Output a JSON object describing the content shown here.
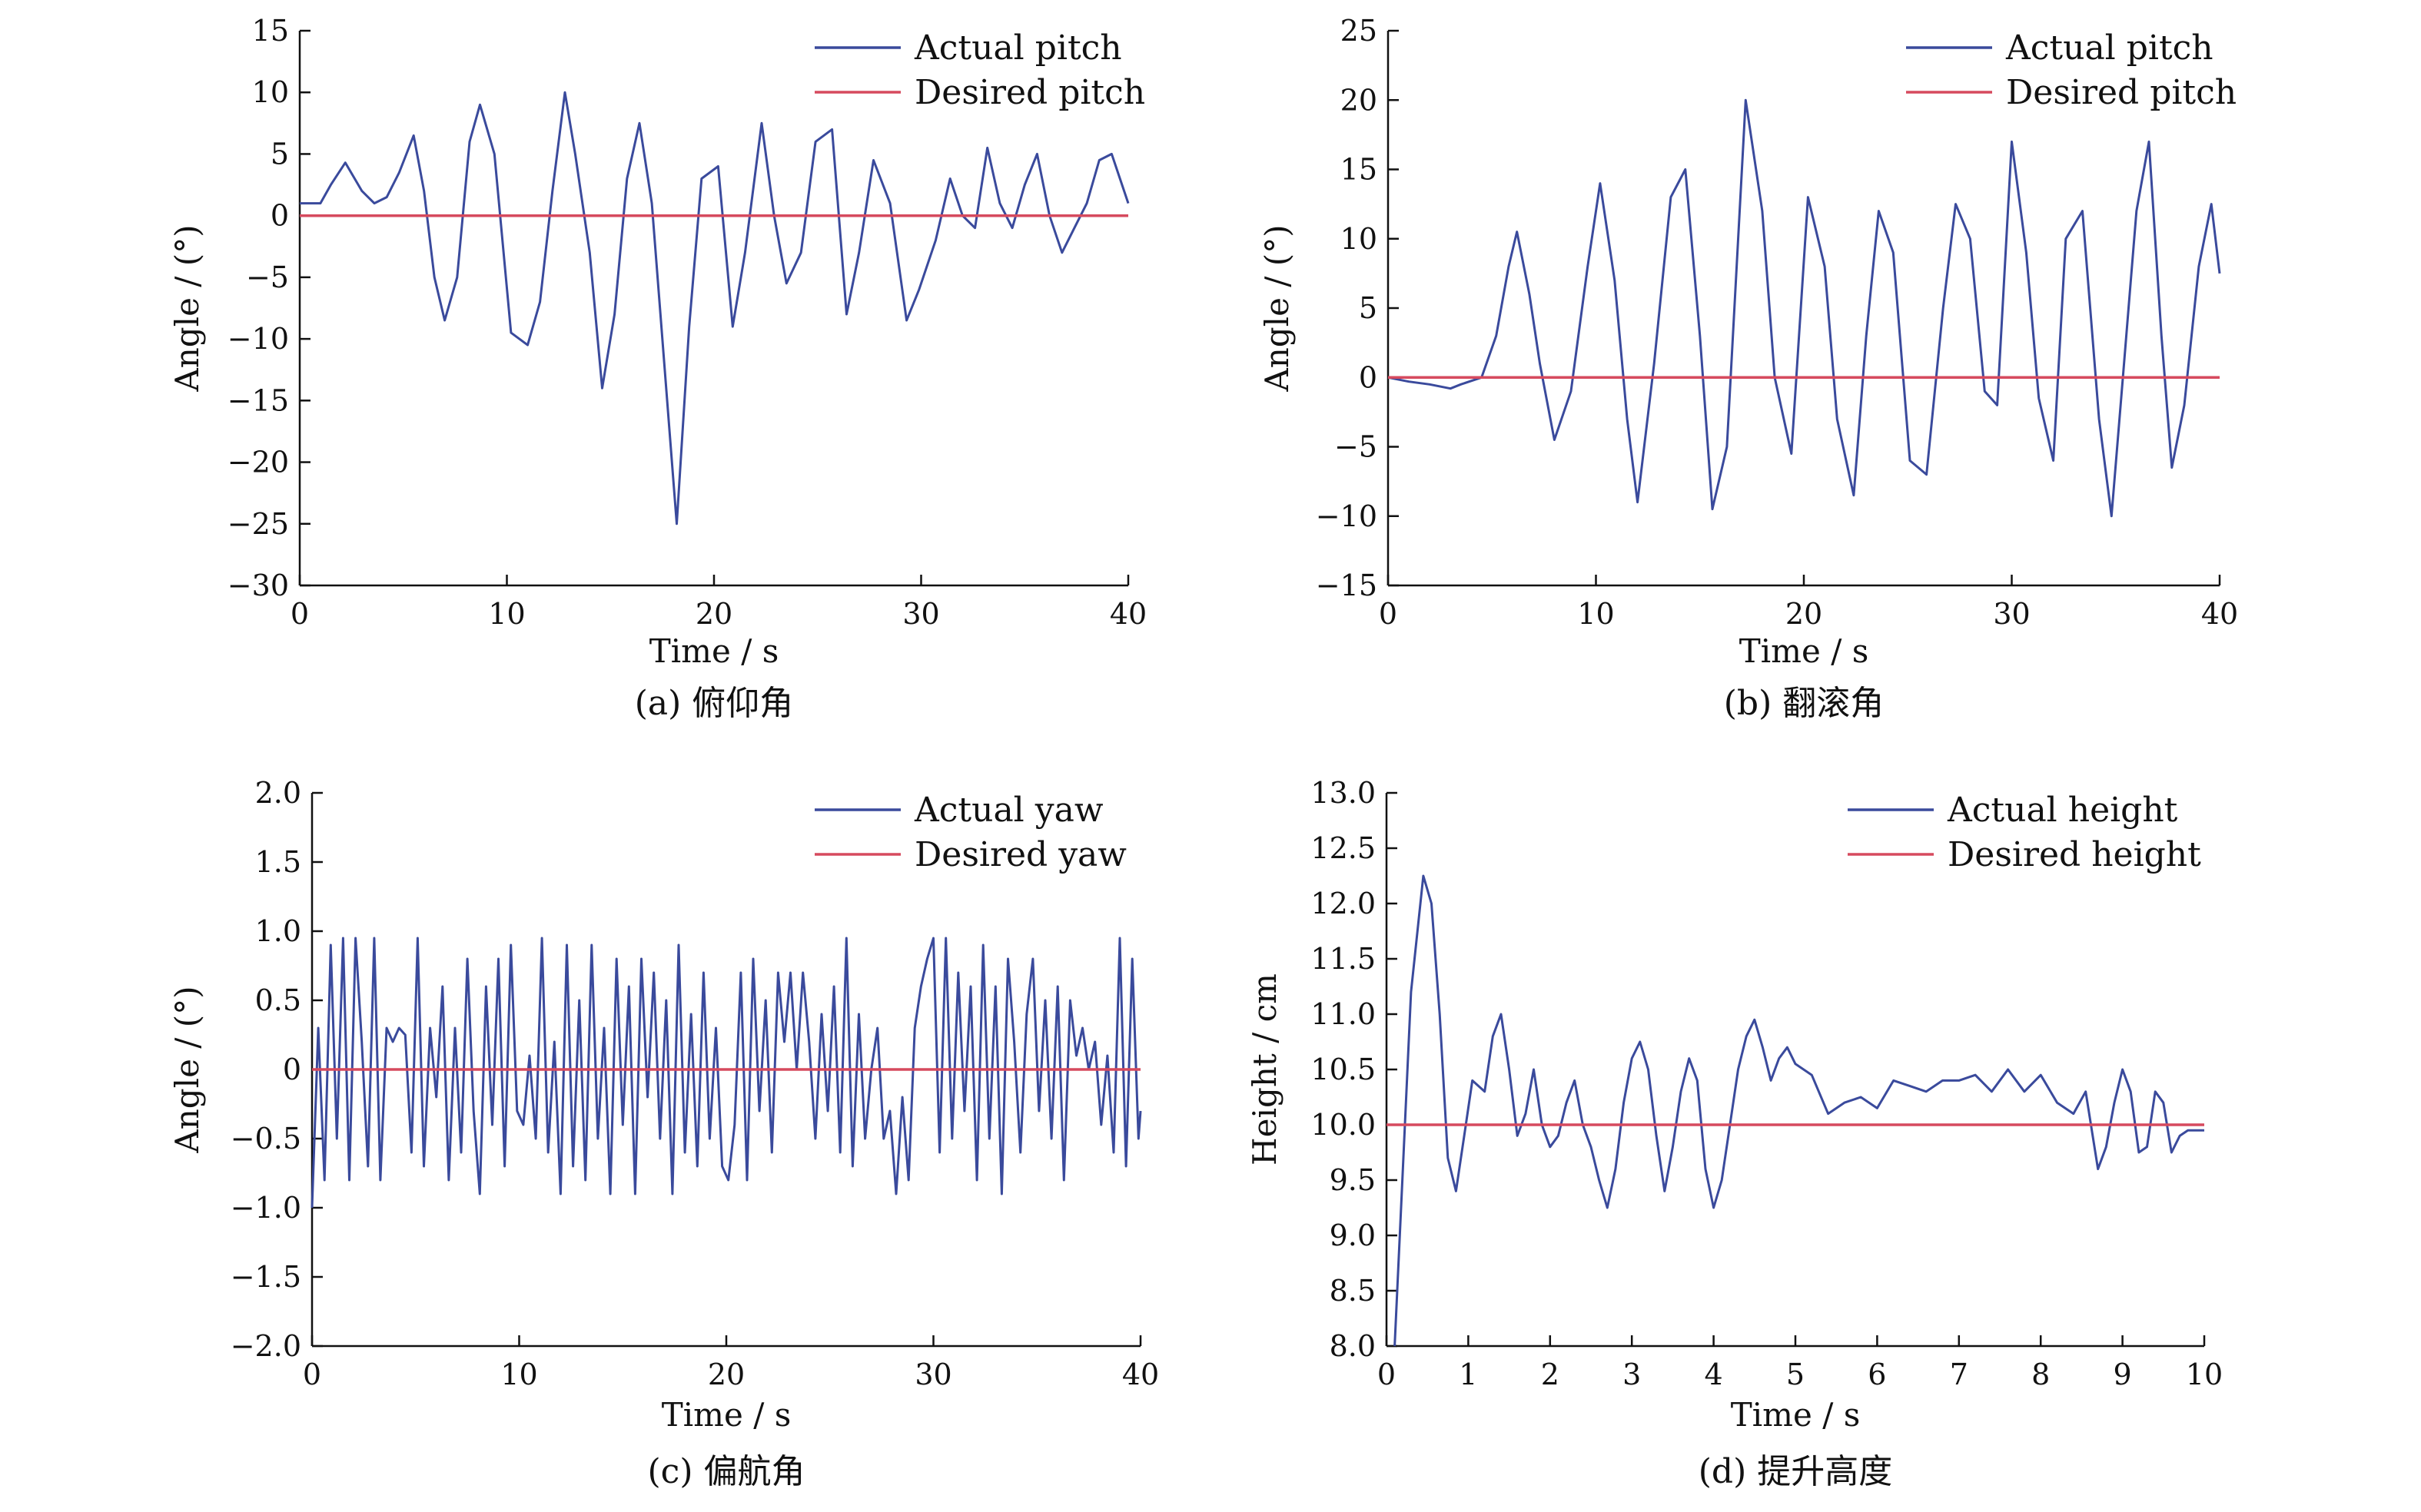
{
  "colors": {
    "actual": "#3a4a9c",
    "desired": "#d64a5e",
    "axis": "#111111",
    "background": "#ffffff"
  },
  "chart_data": [
    {
      "id": "a",
      "type": "line",
      "caption": "(a) 俯仰角",
      "title": "",
      "xlabel": "Time / s",
      "ylabel": "Angle / (°)",
      "xlim": [
        0,
        40
      ],
      "ylim": [
        -30,
        15
      ],
      "xticks": [
        "0",
        "10",
        "20",
        "30",
        "40"
      ],
      "yticks": [
        "15",
        "10",
        "5",
        "0",
        "−5",
        "−10",
        "−15",
        "−20",
        "−25",
        "−30"
      ],
      "grid": false,
      "legend_position": "top-right",
      "series": [
        {
          "name": "Actual pitch",
          "color_key": "actual",
          "x": [
            0,
            1.0,
            1.5,
            2.2,
            3.0,
            3.6,
            4.2,
            4.8,
            5.5,
            6.0,
            6.5,
            7.0,
            7.6,
            8.2,
            8.7,
            9.4,
            10.2,
            11.0,
            11.6,
            12.2,
            12.8,
            13.3,
            14.0,
            14.6,
            15.2,
            15.8,
            16.4,
            17.0,
            17.6,
            18.2,
            18.8,
            19.4,
            20.2,
            20.9,
            21.5,
            22.3,
            22.9,
            23.5,
            24.2,
            24.9,
            25.7,
            26.4,
            27.0,
            27.7,
            28.5,
            29.3,
            29.9,
            30.7,
            31.4,
            32.0,
            32.6,
            33.2,
            33.8,
            34.4,
            35.0,
            35.6,
            36.2,
            36.8,
            37.4,
            38.0,
            38.6,
            39.2,
            39.6,
            40.0
          ],
          "y": [
            1.0,
            1.0,
            2.5,
            4.3,
            2.0,
            1.0,
            1.5,
            3.5,
            6.5,
            2.0,
            -5.0,
            -8.5,
            -5.0,
            6.0,
            9.0,
            5.0,
            -9.5,
            -10.5,
            -7.0,
            2.0,
            10.0,
            5.0,
            -3.0,
            -14.0,
            -8.0,
            3.0,
            7.5,
            1.0,
            -12.0,
            -25.0,
            -9.0,
            3.0,
            4.0,
            -9.0,
            -3.0,
            7.5,
            0.0,
            -5.5,
            -3.0,
            6.0,
            7.0,
            -8.0,
            -3.0,
            4.5,
            1.0,
            -8.5,
            -6.0,
            -2.0,
            3.0,
            0.0,
            -1.0,
            5.5,
            1.0,
            -1.0,
            2.5,
            5.0,
            0.0,
            -3.0,
            -1.0,
            1.0,
            4.5,
            5.0,
            3.0,
            1.0
          ]
        },
        {
          "name": "Desired pitch",
          "color_key": "desired",
          "x": [
            0,
            40
          ],
          "y": [
            0,
            0
          ]
        }
      ]
    },
    {
      "id": "b",
      "type": "line",
      "caption": "(b) 翻滚角",
      "title": "",
      "xlabel": "Time / s",
      "ylabel": "Angle / (°)",
      "xlim": [
        0,
        40
      ],
      "ylim": [
        -15,
        25
      ],
      "xticks": [
        "0",
        "10",
        "20",
        "30",
        "40"
      ],
      "yticks": [
        "25",
        "20",
        "15",
        "10",
        "5",
        "0",
        "−5",
        "−10",
        "−15"
      ],
      "grid": false,
      "legend_position": "top-right",
      "series": [
        {
          "name": "Actual pitch",
          "color_key": "actual",
          "x": [
            0,
            1.0,
            2.0,
            3.0,
            3.5,
            4.5,
            5.2,
            5.8,
            6.2,
            6.8,
            7.3,
            8.0,
            8.8,
            9.6,
            10.2,
            10.9,
            11.5,
            12.0,
            12.8,
            13.6,
            14.3,
            15.0,
            15.6,
            16.3,
            17.2,
            18.0,
            18.6,
            19.4,
            20.2,
            21.0,
            21.6,
            22.4,
            23.0,
            23.6,
            24.3,
            25.1,
            25.9,
            26.7,
            27.3,
            28.0,
            28.7,
            29.3,
            30.0,
            30.7,
            31.3,
            32.0,
            32.6,
            33.4,
            34.2,
            34.8,
            35.4,
            36.0,
            36.6,
            37.2,
            37.7,
            38.3,
            39.0,
            39.6,
            40.0
          ],
          "y": [
            0.0,
            -0.3,
            -0.5,
            -0.8,
            -0.5,
            0.0,
            3.0,
            8.0,
            10.5,
            6.0,
            1.0,
            -4.5,
            -1.0,
            8.0,
            14.0,
            7.0,
            -3.0,
            -9.0,
            1.0,
            13.0,
            15.0,
            3.0,
            -9.5,
            -5.0,
            20.0,
            12.0,
            0.0,
            -5.5,
            13.0,
            8.0,
            -3.0,
            -8.5,
            3.0,
            12.0,
            9.0,
            -6.0,
            -7.0,
            5.0,
            12.5,
            10.0,
            -1.0,
            -2.0,
            17.0,
            9.0,
            -1.5,
            -6.0,
            10.0,
            12.0,
            -3.0,
            -10.0,
            1.0,
            12.0,
            17.0,
            3.0,
            -6.5,
            -2.0,
            8.0,
            12.5,
            7.5
          ]
        },
        {
          "name": "Desired pitch",
          "color_key": "desired",
          "x": [
            0,
            40
          ],
          "y": [
            0,
            0
          ]
        }
      ]
    },
    {
      "id": "c",
      "type": "line",
      "caption": "(c) 偏航角",
      "title": "",
      "xlabel": "Time / s",
      "ylabel": "Angle / (°)",
      "xlim": [
        0,
        40
      ],
      "ylim": [
        -2.0,
        2.0
      ],
      "xticks": [
        "0",
        "10",
        "20",
        "30",
        "40"
      ],
      "yticks": [
        "2.0",
        "1.5",
        "1.0",
        "0.5",
        "0",
        "−0.5",
        "−1.0",
        "−1.5",
        "−2.0"
      ],
      "grid": false,
      "legend_position": "top-right",
      "series": [
        {
          "name": "Actual yaw",
          "color_key": "actual",
          "x": [
            0,
            0.3,
            0.6,
            0.9,
            1.2,
            1.5,
            1.8,
            2.1,
            2.4,
            2.7,
            3.0,
            3.3,
            3.6,
            3.9,
            4.2,
            4.5,
            4.8,
            5.1,
            5.4,
            5.7,
            6.0,
            6.3,
            6.6,
            6.9,
            7.2,
            7.5,
            7.8,
            8.1,
            8.4,
            8.7,
            9.0,
            9.3,
            9.6,
            9.9,
            10.2,
            10.5,
            10.8,
            11.1,
            11.4,
            11.7,
            12.0,
            12.3,
            12.6,
            12.9,
            13.2,
            13.5,
            13.8,
            14.1,
            14.4,
            14.7,
            15.0,
            15.3,
            15.6,
            15.9,
            16.2,
            16.5,
            16.8,
            17.1,
            17.4,
            17.7,
            18.0,
            18.3,
            18.6,
            18.9,
            19.2,
            19.5,
            19.8,
            20.1,
            20.4,
            20.7,
            21.0,
            21.3,
            21.6,
            21.9,
            22.2,
            22.5,
            22.8,
            23.1,
            23.4,
            23.7,
            24.0,
            24.3,
            24.6,
            24.9,
            25.2,
            25.5,
            25.8,
            26.1,
            26.4,
            26.7,
            27.0,
            27.3,
            27.6,
            27.9,
            28.2,
            28.5,
            28.8,
            29.1,
            29.4,
            29.7,
            30.0,
            30.3,
            30.6,
            30.9,
            31.2,
            31.5,
            31.8,
            32.1,
            32.4,
            32.7,
            33.0,
            33.3,
            33.6,
            33.9,
            34.2,
            34.5,
            34.8,
            35.1,
            35.4,
            35.7,
            36.0,
            36.3,
            36.6,
            36.9,
            37.2,
            37.5,
            37.8,
            38.1,
            38.4,
            38.7,
            39.0,
            39.3,
            39.6,
            39.9,
            40.0
          ],
          "y": [
            -1.0,
            0.3,
            -0.8,
            0.9,
            -0.5,
            0.95,
            -0.8,
            0.95,
            0.2,
            -0.7,
            0.95,
            -0.8,
            0.3,
            0.2,
            0.3,
            0.25,
            -0.6,
            0.95,
            -0.7,
            0.3,
            -0.2,
            0.6,
            -0.8,
            0.3,
            -0.6,
            0.8,
            -0.3,
            -0.9,
            0.6,
            -0.4,
            0.8,
            -0.7,
            0.9,
            -0.3,
            -0.4,
            0.1,
            -0.5,
            0.95,
            -0.6,
            0.2,
            -0.9,
            0.9,
            -0.7,
            0.5,
            -0.8,
            0.9,
            -0.5,
            0.3,
            -0.9,
            0.8,
            -0.4,
            0.6,
            -0.9,
            0.8,
            -0.2,
            0.7,
            -0.5,
            0.5,
            -0.9,
            0.9,
            -0.6,
            0.4,
            -0.7,
            0.7,
            -0.5,
            0.3,
            -0.7,
            -0.8,
            -0.4,
            0.7,
            -0.8,
            0.8,
            -0.3,
            0.5,
            -0.6,
            0.7,
            0.2,
            0.7,
            0.0,
            0.7,
            0.2,
            -0.5,
            0.4,
            -0.3,
            0.6,
            -0.6,
            0.95,
            -0.7,
            0.4,
            -0.5,
            0.0,
            0.3,
            -0.5,
            -0.3,
            -0.9,
            -0.2,
            -0.8,
            0.3,
            0.6,
            0.8,
            0.95,
            -0.6,
            0.95,
            -0.5,
            0.7,
            -0.3,
            0.6,
            -0.8,
            0.9,
            -0.5,
            0.6,
            -0.9,
            0.8,
            0.2,
            -0.6,
            0.4,
            0.8,
            -0.3,
            0.5,
            -0.5,
            0.6,
            -0.8,
            0.5,
            0.1,
            0.3,
            0.0,
            0.2,
            -0.4,
            0.1,
            -0.6,
            0.95,
            -0.7,
            0.8,
            -0.5,
            -0.3
          ]
        },
        {
          "name": "Desired yaw",
          "color_key": "desired",
          "x": [
            0,
            40
          ],
          "y": [
            0,
            0
          ]
        }
      ]
    },
    {
      "id": "d",
      "type": "line",
      "caption": "(d) 提升高度",
      "title": "",
      "xlabel": "Time / s",
      "ylabel": "Height / cm",
      "xlim": [
        0,
        10
      ],
      "ylim": [
        8.0,
        13.0
      ],
      "xticks": [
        "0",
        "1",
        "2",
        "3",
        "4",
        "5",
        "6",
        "7",
        "8",
        "9",
        "10"
      ],
      "yticks": [
        "13.0",
        "12.5",
        "12.0",
        "11.5",
        "11.0",
        "10.5",
        "10.0",
        "9.5",
        "9.0",
        "8.5",
        "8.0"
      ],
      "grid": false,
      "legend_position": "top-right",
      "series": [
        {
          "name": "Actual height",
          "color_key": "actual",
          "x": [
            0.1,
            0.2,
            0.3,
            0.45,
            0.55,
            0.65,
            0.75,
            0.85,
            0.95,
            1.05,
            1.2,
            1.3,
            1.4,
            1.5,
            1.6,
            1.7,
            1.8,
            1.9,
            2.0,
            2.1,
            2.2,
            2.3,
            2.4,
            2.5,
            2.6,
            2.7,
            2.8,
            2.9,
            3.0,
            3.1,
            3.2,
            3.3,
            3.4,
            3.5,
            3.6,
            3.7,
            3.8,
            3.9,
            4.0,
            4.1,
            4.2,
            4.3,
            4.4,
            4.5,
            4.6,
            4.7,
            4.8,
            4.9,
            5.0,
            5.2,
            5.4,
            5.6,
            5.8,
            6.0,
            6.2,
            6.4,
            6.6,
            6.8,
            7.0,
            7.2,
            7.4,
            7.6,
            7.8,
            8.0,
            8.2,
            8.4,
            8.55,
            8.7,
            8.8,
            8.9,
            9.0,
            9.1,
            9.2,
            9.3,
            9.4,
            9.5,
            9.6,
            9.7,
            9.8,
            9.9,
            10.0
          ],
          "y": [
            8.0,
            9.6,
            11.2,
            12.25,
            12.0,
            11.0,
            9.7,
            9.4,
            9.9,
            10.4,
            10.3,
            10.8,
            11.0,
            10.5,
            9.9,
            10.1,
            10.5,
            10.0,
            9.8,
            9.9,
            10.2,
            10.4,
            10.0,
            9.8,
            9.5,
            9.25,
            9.6,
            10.2,
            10.6,
            10.75,
            10.5,
            9.9,
            9.4,
            9.8,
            10.3,
            10.6,
            10.4,
            9.6,
            9.25,
            9.5,
            10.0,
            10.5,
            10.8,
            10.95,
            10.7,
            10.4,
            10.6,
            10.7,
            10.55,
            10.45,
            10.1,
            10.2,
            10.25,
            10.15,
            10.4,
            10.35,
            10.3,
            10.4,
            10.4,
            10.45,
            10.3,
            10.5,
            10.3,
            10.45,
            10.2,
            10.1,
            10.3,
            9.6,
            9.8,
            10.2,
            10.5,
            10.3,
            9.75,
            9.8,
            10.3,
            10.2,
            9.75,
            9.9,
            9.95,
            9.95,
            9.95
          ]
        },
        {
          "name": "Desired height",
          "color_key": "desired",
          "x": [
            0,
            10
          ],
          "y": [
            10,
            10
          ]
        }
      ]
    }
  ]
}
